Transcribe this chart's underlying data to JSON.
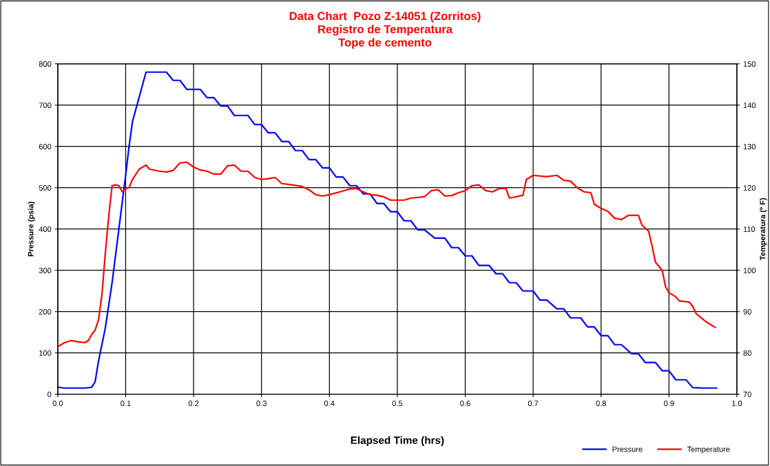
{
  "chart_data": {
    "type": "line",
    "title": "Data Chart  Pozo Z-14051 (Zorritos)\nRegistro de Temperatura\nTope de cemento",
    "xlabel": "Elapsed Time (hrs)",
    "ylabel": "Pressure (psia)",
    "y2label": "Temperatura (º F)",
    "xlim": [
      0,
      1.0
    ],
    "xticks": [
      {
        "value": 0,
        "label": "0.0"
      },
      {
        "value": 0.1,
        "label": "0.1"
      },
      {
        "value": 0.2,
        "label": "0.2"
      },
      {
        "value": 0.3,
        "label": "0.3"
      },
      {
        "value": 0.4,
        "label": "0.4"
      },
      {
        "value": 0.5,
        "label": "0.5"
      },
      {
        "value": 0.6,
        "label": "0.6"
      },
      {
        "value": 0.7,
        "label": "0.7"
      },
      {
        "value": 0.8,
        "label": "0.8"
      },
      {
        "value": 0.9,
        "label": "0.9"
      },
      {
        "value": 1.0,
        "label": "1.0"
      }
    ],
    "ylim": [
      0,
      800
    ],
    "yticks": [
      0,
      100,
      200,
      300,
      400,
      500,
      600,
      700,
      800
    ],
    "y2lim": [
      70,
      150
    ],
    "y2ticks": [
      70,
      80,
      90,
      100,
      110,
      120,
      130,
      140,
      150
    ],
    "grid": true,
    "legend": "bottom right",
    "marker": "none",
    "line_style": "solid",
    "series": [
      {
        "name": "Pressure",
        "color": "#0000ff",
        "x": [
          0,
          0.01,
          0.04,
          0.05,
          0.055,
          0.06,
          0.07,
          0.08,
          0.09,
          0.1,
          0.105,
          0.11,
          0.12,
          0.13,
          0.16,
          0.17,
          0.18,
          0.19,
          0.2,
          0.21,
          0.22,
          0.23,
          0.24,
          0.25,
          0.26,
          0.27,
          0.28,
          0.29,
          0.3,
          0.31,
          0.32,
          0.33,
          0.34,
          0.35,
          0.36,
          0.37,
          0.38,
          0.39,
          0.4,
          0.41,
          0.42,
          0.43,
          0.44,
          0.45,
          0.46,
          0.47,
          0.48,
          0.49,
          0.5,
          0.51,
          0.52,
          0.53,
          0.54,
          0.555,
          0.57,
          0.58,
          0.59,
          0.6,
          0.61,
          0.62,
          0.635,
          0.645,
          0.655,
          0.665,
          0.675,
          0.685,
          0.7,
          0.71,
          0.72,
          0.735,
          0.745,
          0.755,
          0.77,
          0.78,
          0.79,
          0.8,
          0.81,
          0.82,
          0.83,
          0.845,
          0.855,
          0.865,
          0.88,
          0.89,
          0.9,
          0.91,
          0.925,
          0.935,
          0.95,
          0.97
        ],
        "values": [
          17,
          15,
          15,
          17,
          30,
          80,
          160,
          270,
          400,
          530,
          600,
          660,
          720,
          780,
          780,
          760,
          760,
          738,
          738,
          738,
          718,
          718,
          698,
          698,
          675,
          675,
          675,
          653,
          653,
          633,
          633,
          612,
          612,
          590,
          590,
          568,
          568,
          548,
          548,
          526,
          526,
          505,
          505,
          485,
          485,
          462,
          462,
          442,
          442,
          420,
          420,
          398,
          398,
          378,
          378,
          355,
          355,
          335,
          335,
          312,
          312,
          292,
          292,
          270,
          270,
          250,
          250,
          228,
          228,
          207,
          207,
          185,
          185,
          163,
          163,
          142,
          142,
          120,
          120,
          98,
          98,
          77,
          77,
          57,
          57,
          35,
          35,
          16,
          15,
          15
        ]
      },
      {
        "name": "Temperature",
        "color": "#ff0000",
        "axis": "y2",
        "x": [
          0,
          0.01,
          0.02,
          0.03,
          0.04,
          0.045,
          0.05,
          0.055,
          0.06,
          0.065,
          0.07,
          0.075,
          0.08,
          0.085,
          0.09,
          0.095,
          0.1,
          0.105,
          0.11,
          0.12,
          0.13,
          0.135,
          0.15,
          0.16,
          0.17,
          0.18,
          0.19,
          0.2,
          0.21,
          0.22,
          0.23,
          0.24,
          0.25,
          0.26,
          0.27,
          0.28,
          0.29,
          0.3,
          0.31,
          0.32,
          0.33,
          0.34,
          0.36,
          0.37,
          0.38,
          0.39,
          0.4,
          0.42,
          0.43,
          0.44,
          0.45,
          0.46,
          0.47,
          0.48,
          0.49,
          0.51,
          0.52,
          0.54,
          0.55,
          0.56,
          0.57,
          0.58,
          0.59,
          0.6,
          0.61,
          0.62,
          0.63,
          0.64,
          0.65,
          0.66,
          0.665,
          0.675,
          0.685,
          0.69,
          0.7,
          0.72,
          0.735,
          0.745,
          0.755,
          0.765,
          0.775,
          0.785,
          0.79,
          0.8,
          0.81,
          0.82,
          0.83,
          0.84,
          0.855,
          0.86,
          0.87,
          0.875,
          0.88,
          0.89,
          0.895,
          0.9,
          0.91,
          0.915,
          0.93,
          0.935,
          0.94,
          0.955,
          0.968
        ],
        "values": [
          81.5,
          82.5,
          83,
          82.7,
          82.5,
          83,
          84.5,
          85.5,
          88,
          94,
          104,
          113,
          120.5,
          120.7,
          120.5,
          119,
          119.8,
          120,
          122,
          124.5,
          125.5,
          124.5,
          124,
          123.8,
          124.2,
          126,
          126.2,
          125,
          124.3,
          124,
          123.3,
          123.3,
          125.3,
          125.5,
          124,
          124,
          122.5,
          122,
          122.2,
          122.5,
          121,
          120.8,
          120.3,
          119.5,
          118.3,
          118,
          118.3,
          119.2,
          119.7,
          119.8,
          119,
          118.3,
          118.2,
          117.8,
          117,
          117,
          117.5,
          117.8,
          119.3,
          119.5,
          118,
          118.1,
          118.8,
          119.3,
          120.5,
          120.7,
          119.3,
          119,
          119.8,
          119.8,
          117.5,
          117.8,
          118.2,
          122,
          123,
          122.7,
          123,
          121.8,
          121.6,
          120,
          119,
          118.8,
          116,
          115,
          114.3,
          112.6,
          112.3,
          113.3,
          113.3,
          111,
          109.5,
          106,
          102,
          100,
          96,
          94.6,
          93.6,
          92.6,
          92.3,
          91.3,
          89.5,
          87.5,
          86.2
        ]
      }
    ]
  }
}
